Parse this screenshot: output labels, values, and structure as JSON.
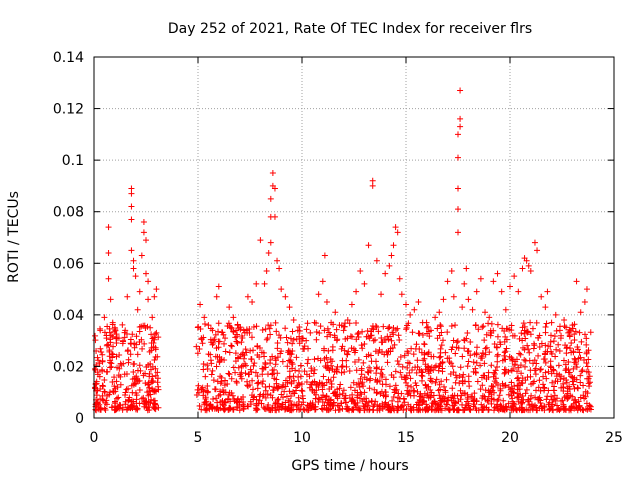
{
  "chart_data": {
    "type": "scatter",
    "title": "Day 252 of 2021, Rate Of TEC Index for receiver flrs",
    "xlabel": "GPS time / hours",
    "ylabel": "ROTI / TECUs",
    "xlim": [
      0,
      25
    ],
    "ylim": [
      0,
      0.14
    ],
    "xticks": [
      "0",
      "5",
      "10",
      "15",
      "20",
      "25"
    ],
    "yticks": [
      "0",
      "0.02",
      "0.04",
      "0.06",
      "0.08",
      "0.1",
      "0.12",
      "0.14"
    ],
    "xtick_values": [
      0,
      5,
      10,
      15,
      20,
      25
    ],
    "ytick_values": [
      0,
      0.02,
      0.04,
      0.06,
      0.08,
      0.1,
      0.12,
      0.14
    ],
    "grid": true,
    "marker": "+",
    "color": "#ff0000",
    "data_gap_hours": [
      3.1,
      4.9
    ],
    "series": [
      {
        "name": "ROTI",
        "points": [
          [
            0.1,
            0.026
          ],
          [
            0.3,
            0.034
          ],
          [
            0.5,
            0.039
          ],
          [
            0.6,
            0.031
          ],
          [
            0.7,
            0.054
          ],
          [
            0.7,
            0.064
          ],
          [
            0.7,
            0.074
          ],
          [
            0.8,
            0.046
          ],
          [
            0.9,
            0.037
          ],
          [
            1.0,
            0.035
          ],
          [
            1.2,
            0.031
          ],
          [
            1.5,
            0.034
          ],
          [
            1.6,
            0.047
          ],
          [
            1.8,
            0.089
          ],
          [
            1.8,
            0.087
          ],
          [
            1.8,
            0.082
          ],
          [
            1.8,
            0.077
          ],
          [
            1.8,
            0.065
          ],
          [
            1.9,
            0.061
          ],
          [
            1.9,
            0.058
          ],
          [
            2.0,
            0.055
          ],
          [
            2.1,
            0.042
          ],
          [
            2.2,
            0.049
          ],
          [
            2.3,
            0.063
          ],
          [
            2.4,
            0.076
          ],
          [
            2.4,
            0.072
          ],
          [
            2.5,
            0.069
          ],
          [
            2.5,
            0.056
          ],
          [
            2.6,
            0.053
          ],
          [
            2.6,
            0.046
          ],
          [
            2.7,
            0.035
          ],
          [
            2.8,
            0.039
          ],
          [
            2.9,
            0.047
          ],
          [
            3.0,
            0.05
          ],
          [
            3.0,
            0.033
          ],
          [
            5.1,
            0.044
          ],
          [
            5.3,
            0.039
          ],
          [
            5.5,
            0.036
          ],
          [
            5.7,
            0.034
          ],
          [
            5.9,
            0.047
          ],
          [
            6.0,
            0.051
          ],
          [
            6.3,
            0.031
          ],
          [
            6.5,
            0.043
          ],
          [
            6.7,
            0.039
          ],
          [
            6.9,
            0.036
          ],
          [
            7.2,
            0.034
          ],
          [
            7.4,
            0.047
          ],
          [
            7.6,
            0.045
          ],
          [
            7.8,
            0.052
          ],
          [
            8.0,
            0.069
          ],
          [
            8.2,
            0.052
          ],
          [
            8.3,
            0.057
          ],
          [
            8.4,
            0.064
          ],
          [
            8.5,
            0.068
          ],
          [
            8.5,
            0.078
          ],
          [
            8.5,
            0.085
          ],
          [
            8.6,
            0.09
          ],
          [
            8.6,
            0.095
          ],
          [
            8.7,
            0.089
          ],
          [
            8.7,
            0.078
          ],
          [
            8.8,
            0.061
          ],
          [
            8.9,
            0.058
          ],
          [
            9.0,
            0.05
          ],
          [
            9.2,
            0.047
          ],
          [
            9.4,
            0.043
          ],
          [
            9.6,
            0.038
          ],
          [
            9.8,
            0.034
          ],
          [
            10.0,
            0.031
          ],
          [
            10.2,
            0.03
          ],
          [
            10.4,
            0.033
          ],
          [
            10.6,
            0.037
          ],
          [
            10.8,
            0.048
          ],
          [
            11.0,
            0.053
          ],
          [
            11.1,
            0.063
          ],
          [
            11.2,
            0.045
          ],
          [
            11.4,
            0.037
          ],
          [
            11.6,
            0.041
          ],
          [
            11.8,
            0.036
          ],
          [
            12.0,
            0.034
          ],
          [
            12.2,
            0.038
          ],
          [
            12.4,
            0.044
          ],
          [
            12.6,
            0.049
          ],
          [
            12.8,
            0.057
          ],
          [
            13.0,
            0.052
          ],
          [
            13.2,
            0.067
          ],
          [
            13.4,
            0.092
          ],
          [
            13.4,
            0.09
          ],
          [
            13.6,
            0.061
          ],
          [
            13.8,
            0.048
          ],
          [
            14.0,
            0.056
          ],
          [
            14.2,
            0.059
          ],
          [
            14.3,
            0.063
          ],
          [
            14.4,
            0.067
          ],
          [
            14.5,
            0.074
          ],
          [
            14.6,
            0.072
          ],
          [
            14.7,
            0.054
          ],
          [
            14.8,
            0.048
          ],
          [
            15.0,
            0.044
          ],
          [
            15.2,
            0.04
          ],
          [
            15.4,
            0.042
          ],
          [
            15.6,
            0.045
          ],
          [
            15.8,
            0.037
          ],
          [
            16.0,
            0.035
          ],
          [
            16.2,
            0.034
          ],
          [
            16.4,
            0.039
          ],
          [
            16.6,
            0.041
          ],
          [
            16.8,
            0.046
          ],
          [
            17.0,
            0.053
          ],
          [
            17.2,
            0.057
          ],
          [
            17.3,
            0.047
          ],
          [
            17.5,
            0.072
          ],
          [
            17.5,
            0.081
          ],
          [
            17.5,
            0.089
          ],
          [
            17.5,
            0.101
          ],
          [
            17.5,
            0.11
          ],
          [
            17.6,
            0.113
          ],
          [
            17.6,
            0.116
          ],
          [
            17.6,
            0.127
          ],
          [
            17.7,
            0.043
          ],
          [
            17.8,
            0.052
          ],
          [
            17.9,
            0.058
          ],
          [
            18.0,
            0.046
          ],
          [
            18.2,
            0.042
          ],
          [
            18.4,
            0.049
          ],
          [
            18.6,
            0.054
          ],
          [
            18.8,
            0.041
          ],
          [
            19.0,
            0.039
          ],
          [
            19.2,
            0.053
          ],
          [
            19.4,
            0.056
          ],
          [
            19.6,
            0.049
          ],
          [
            19.8,
            0.042
          ],
          [
            20.0,
            0.051
          ],
          [
            20.2,
            0.055
          ],
          [
            20.4,
            0.049
          ],
          [
            20.6,
            0.058
          ],
          [
            20.7,
            0.062
          ],
          [
            20.8,
            0.061
          ],
          [
            20.9,
            0.059
          ],
          [
            21.0,
            0.057
          ],
          [
            21.2,
            0.068
          ],
          [
            21.3,
            0.065
          ],
          [
            21.5,
            0.047
          ],
          [
            21.7,
            0.043
          ],
          [
            21.8,
            0.049
          ],
          [
            22.0,
            0.037
          ],
          [
            22.2,
            0.04
          ],
          [
            22.4,
            0.034
          ],
          [
            22.6,
            0.038
          ],
          [
            22.8,
            0.033
          ],
          [
            23.0,
            0.036
          ],
          [
            23.2,
            0.053
          ],
          [
            23.4,
            0.041
          ],
          [
            23.6,
            0.045
          ],
          [
            23.7,
            0.05
          ]
        ]
      }
    ]
  }
}
